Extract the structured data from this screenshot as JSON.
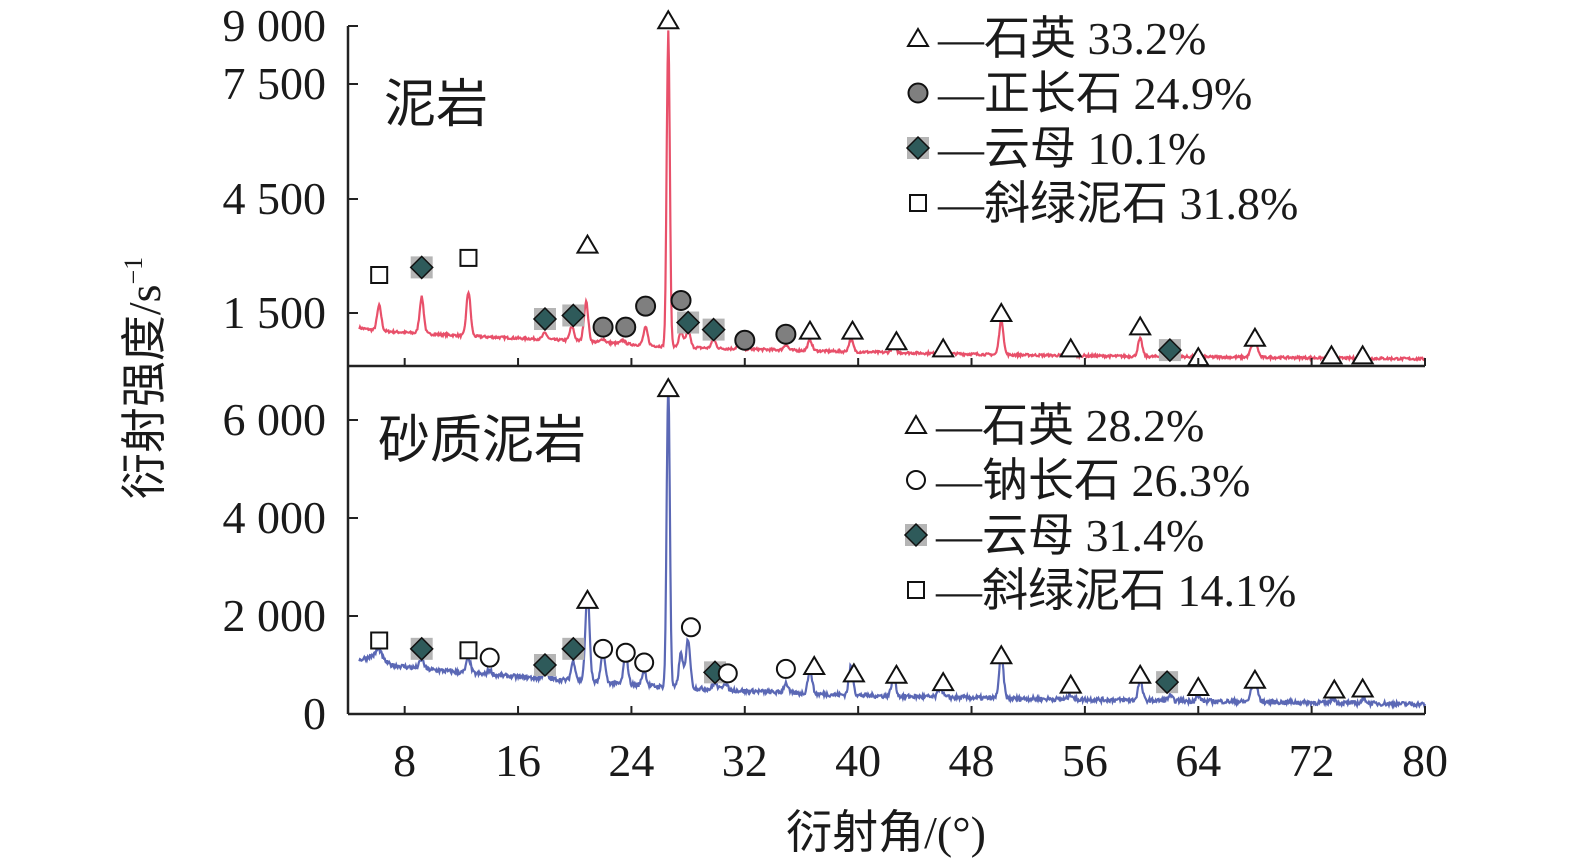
{
  "chart_data": {
    "type": "line",
    "xlabel": "衍射角/(°)",
    "ylabel": "衍射强度/s",
    "ylabel_sup": "−1",
    "x_ticks": [
      8,
      16,
      24,
      32,
      40,
      48,
      56,
      64,
      72,
      80
    ],
    "xlim": [
      4,
      80
    ],
    "colors": {
      "top": "#e8506a",
      "bottom": "#5b68b5",
      "marker_fill": "#7f7f7f",
      "diamond_fill": "#2e5a5a"
    },
    "panels": [
      {
        "title": "泥岩",
        "y_ticks": [
          {
            "v": 1500,
            "label": "1 500"
          },
          {
            "v": 4500,
            "label": "4 500"
          },
          {
            "v": 7500,
            "label": "7 500"
          },
          {
            "v": 9000,
            "label": "9 000"
          }
        ],
        "legend": [
          {
            "marker": "triangle",
            "text": "—石英 33.2%"
          },
          {
            "marker": "filled-circle",
            "text": "—正长石 24.9%"
          },
          {
            "marker": "diamond",
            "text": "—云母 10.1%"
          },
          {
            "marker": "square",
            "text": "—斜绿泥石 31.8%"
          }
        ],
        "baseline": [
          [
            4.8,
            1080
          ],
          [
            6,
            1000
          ],
          [
            10,
            900
          ],
          [
            14,
            820
          ],
          [
            20,
            720
          ],
          [
            26,
            560
          ],
          [
            30,
            500
          ],
          [
            40,
            400
          ],
          [
            50,
            320
          ],
          [
            60,
            270
          ],
          [
            70,
            240
          ],
          [
            80,
            200
          ]
        ],
        "peaks": [
          [
            6.2,
            700
          ],
          [
            9.2,
            1000
          ],
          [
            12.5,
            1200
          ],
          [
            17.9,
            180
          ],
          [
            19.8,
            400
          ],
          [
            20.8,
            1100
          ],
          [
            22,
            100
          ],
          [
            23.4,
            100
          ],
          [
            25,
            500
          ],
          [
            26.6,
            8300
          ],
          [
            27.5,
            400
          ],
          [
            28,
            500
          ],
          [
            29.8,
            250
          ],
          [
            31.6,
            120
          ],
          [
            34.9,
            150
          ],
          [
            36.6,
            300
          ],
          [
            39.5,
            350
          ],
          [
            42.5,
            200
          ],
          [
            45.8,
            150
          ],
          [
            50.1,
            1000
          ],
          [
            55,
            200
          ],
          [
            59.9,
            500
          ],
          [
            62,
            150
          ],
          [
            64,
            120
          ],
          [
            67.8,
            300
          ],
          [
            68.1,
            300
          ],
          [
            73.5,
            100
          ],
          [
            75.7,
            100
          ]
        ],
        "markers": [
          {
            "type": "square",
            "x": 6.2,
            "y": 2500
          },
          {
            "type": "diamond",
            "x": 9.2,
            "y": 2700
          },
          {
            "type": "square",
            "x": 12.5,
            "y": 2950
          },
          {
            "type": "diamond",
            "x": 17.9,
            "y": 1330
          },
          {
            "type": "diamond",
            "x": 19.9,
            "y": 1430
          },
          {
            "type": "triangle",
            "x": 20.9,
            "y": 3300
          },
          {
            "type": "filled-circle",
            "x": 22,
            "y": 1100
          },
          {
            "type": "filled-circle",
            "x": 23.6,
            "y": 1100
          },
          {
            "type": "filled-circle",
            "x": 25,
            "y": 1680
          },
          {
            "type": "triangle",
            "x": 26.6,
            "y": 9150
          },
          {
            "type": "filled-circle",
            "x": 27.5,
            "y": 1830
          },
          {
            "type": "diamond",
            "x": 28,
            "y": 1230
          },
          {
            "type": "diamond",
            "x": 29.8,
            "y": 1030
          },
          {
            "type": "filled-circle",
            "x": 32,
            "y": 730
          },
          {
            "type": "filled-circle",
            "x": 34.9,
            "y": 900
          },
          {
            "type": "triangle",
            "x": 36.6,
            "y": 1000
          },
          {
            "type": "triangle",
            "x": 39.6,
            "y": 1000
          },
          {
            "type": "triangle",
            "x": 42.7,
            "y": 700
          },
          {
            "type": "triangle",
            "x": 46,
            "y": 500
          },
          {
            "type": "triangle",
            "x": 50.1,
            "y": 1500
          },
          {
            "type": "triangle",
            "x": 55,
            "y": 500
          },
          {
            "type": "triangle",
            "x": 59.9,
            "y": 1120
          },
          {
            "type": "diamond",
            "x": 62,
            "y": 450
          },
          {
            "type": "triangle",
            "x": 64,
            "y": 250
          },
          {
            "type": "triangle",
            "x": 68,
            "y": 800
          },
          {
            "type": "triangle",
            "x": 73.4,
            "y": 300
          },
          {
            "type": "triangle",
            "x": 75.6,
            "y": 300
          }
        ]
      },
      {
        "title": "砂质泥岩",
        "y_ticks": [
          {
            "v": 0,
            "label": "0"
          },
          {
            "v": 2000,
            "label": "2 000"
          },
          {
            "v": 4000,
            "label": "4 000"
          },
          {
            "v": 6000,
            "label": "6 000"
          }
        ],
        "legend": [
          {
            "marker": "triangle",
            "text": "—石英 28.2%"
          },
          {
            "marker": "open-circle",
            "text": "—钠长石 26.3%"
          },
          {
            "marker": "diamond",
            "text": "—云母 31.4%"
          },
          {
            "marker": "square",
            "text": "—斜绿泥石 14.1%"
          }
        ],
        "baseline": [
          [
            4.8,
            1100
          ],
          [
            6,
            1220
          ],
          [
            7,
            1000
          ],
          [
            10,
            900
          ],
          [
            14,
            800
          ],
          [
            20,
            680
          ],
          [
            26,
            560
          ],
          [
            30,
            500
          ],
          [
            36,
            420
          ],
          [
            40,
            380
          ],
          [
            50,
            320
          ],
          [
            60,
            280
          ],
          [
            70,
            240
          ],
          [
            80,
            200
          ]
        ],
        "peaks": [
          [
            6.2,
            150
          ],
          [
            9.2,
            200
          ],
          [
            12.5,
            300
          ],
          [
            14,
            100
          ],
          [
            17.9,
            150
          ],
          [
            19.9,
            400
          ],
          [
            20.9,
            1800
          ],
          [
            22,
            600
          ],
          [
            23.6,
            600
          ],
          [
            24.9,
            300
          ],
          [
            26.6,
            6200
          ],
          [
            27.5,
            700
          ],
          [
            28,
            1000
          ],
          [
            29.9,
            150
          ],
          [
            30.6,
            150
          ],
          [
            34.9,
            200
          ],
          [
            36.6,
            500
          ],
          [
            39.5,
            600
          ],
          [
            42.5,
            400
          ],
          [
            45.8,
            200
          ],
          [
            50.1,
            900
          ],
          [
            55,
            100
          ],
          [
            59.9,
            400
          ],
          [
            62,
            100
          ],
          [
            64,
            100
          ],
          [
            67.8,
            250
          ],
          [
            68.1,
            300
          ],
          [
            73.5,
            100
          ],
          [
            75.7,
            100
          ]
        ],
        "markers": [
          {
            "type": "square",
            "x": 6.2,
            "y": 1500
          },
          {
            "type": "diamond",
            "x": 9.2,
            "y": 1330
          },
          {
            "type": "square",
            "x": 12.5,
            "y": 1300
          },
          {
            "type": "open-circle",
            "x": 14,
            "y": 1150
          },
          {
            "type": "diamond",
            "x": 17.9,
            "y": 1000
          },
          {
            "type": "diamond",
            "x": 19.9,
            "y": 1330
          },
          {
            "type": "triangle",
            "x": 20.9,
            "y": 2330
          },
          {
            "type": "open-circle",
            "x": 22,
            "y": 1330
          },
          {
            "type": "open-circle",
            "x": 23.6,
            "y": 1250
          },
          {
            "type": "open-circle",
            "x": 24.9,
            "y": 1050
          },
          {
            "type": "triangle",
            "x": 26.6,
            "y": 6650
          },
          {
            "type": "open-circle",
            "x": 28.2,
            "y": 1770
          },
          {
            "type": "diamond",
            "x": 29.9,
            "y": 850
          },
          {
            "type": "open-circle",
            "x": 30.8,
            "y": 830
          },
          {
            "type": "open-circle",
            "x": 34.9,
            "y": 920
          },
          {
            "type": "triangle",
            "x": 36.9,
            "y": 980
          },
          {
            "type": "triangle",
            "x": 39.7,
            "y": 830
          },
          {
            "type": "triangle",
            "x": 42.7,
            "y": 800
          },
          {
            "type": "triangle",
            "x": 46,
            "y": 650
          },
          {
            "type": "triangle",
            "x": 50.1,
            "y": 1200
          },
          {
            "type": "triangle",
            "x": 55,
            "y": 600
          },
          {
            "type": "triangle",
            "x": 59.9,
            "y": 800
          },
          {
            "type": "diamond",
            "x": 61.8,
            "y": 650
          },
          {
            "type": "triangle",
            "x": 64,
            "y": 550
          },
          {
            "type": "triangle",
            "x": 68,
            "y": 700
          },
          {
            "type": "triangle",
            "x": 73.6,
            "y": 500
          },
          {
            "type": "triangle",
            "x": 75.6,
            "y": 520
          }
        ]
      }
    ]
  }
}
